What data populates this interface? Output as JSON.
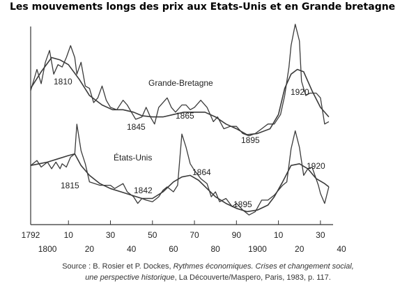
{
  "title": "Les mouvements longs des prix aux Etats-Unis et en Grande bretagne",
  "source": {
    "line1_prefix": "Source : B. Rosier et P. Dockes, ",
    "line1_italic": "Rythmes économiques. Crises et changement social,",
    "line2_italic": "une perspective historique",
    "line2_suffix": ", La Découverte/Maspero, Paris, 1983, p. 117."
  },
  "chart_data": {
    "type": "line",
    "title": "Les mouvements longs des prix aux Etats-Unis et en Grande bretagne",
    "xlabel": "",
    "ylabel": "",
    "xlim": [
      1792,
      1940
    ],
    "x_tick_labels_row1": [
      "1792",
      "10",
      "30",
      "50",
      "70",
      "90",
      "10",
      "30"
    ],
    "x_tick_values_row1": [
      1792,
      1810,
      1830,
      1850,
      1870,
      1890,
      1910,
      1930
    ],
    "x_tick_labels_row2": [
      "1800",
      "20",
      "40",
      "60",
      "80",
      "1900",
      "20",
      "40"
    ],
    "x_tick_values_row2": [
      1800,
      1820,
      1840,
      1860,
      1880,
      1900,
      1920,
      1940
    ],
    "y_axis_values_shown": false,
    "grid": false,
    "series": [
      {
        "name": "Grande-Bretagne",
        "style": "annual",
        "points": [
          [
            1792,
            77
          ],
          [
            1795,
            86
          ],
          [
            1797,
            80
          ],
          [
            1799,
            89
          ],
          [
            1801,
            94
          ],
          [
            1803,
            84
          ],
          [
            1805,
            88
          ],
          [
            1807,
            87
          ],
          [
            1809,
            91
          ],
          [
            1811,
            96
          ],
          [
            1813,
            91
          ],
          [
            1814,
            84
          ],
          [
            1816,
            89
          ],
          [
            1818,
            79
          ],
          [
            1820,
            78
          ],
          [
            1822,
            72
          ],
          [
            1824,
            74
          ],
          [
            1826,
            79
          ],
          [
            1828,
            73
          ],
          [
            1830,
            70
          ],
          [
            1833,
            69
          ],
          [
            1836,
            73
          ],
          [
            1838,
            71
          ],
          [
            1840,
            68
          ],
          [
            1842,
            65
          ],
          [
            1845,
            66
          ],
          [
            1847,
            70
          ],
          [
            1849,
            66
          ],
          [
            1851,
            63
          ],
          [
            1853,
            70
          ],
          [
            1855,
            72
          ],
          [
            1857,
            74
          ],
          [
            1859,
            70
          ],
          [
            1861,
            68
          ],
          [
            1864,
            71
          ],
          [
            1866,
            71
          ],
          [
            1868,
            69
          ],
          [
            1870,
            70
          ],
          [
            1873,
            73
          ],
          [
            1876,
            70
          ],
          [
            1879,
            64
          ],
          [
            1881,
            66
          ],
          [
            1884,
            61
          ],
          [
            1887,
            62
          ],
          [
            1890,
            62
          ],
          [
            1893,
            59
          ],
          [
            1896,
            58
          ],
          [
            1899,
            59
          ],
          [
            1902,
            61
          ],
          [
            1905,
            63
          ],
          [
            1908,
            63
          ],
          [
            1911,
            67
          ],
          [
            1913,
            75
          ],
          [
            1915,
            87
          ],
          [
            1916,
            96
          ],
          [
            1918,
            105
          ],
          [
            1920,
            98
          ],
          [
            1921,
            81
          ],
          [
            1923,
            75
          ],
          [
            1925,
            76
          ],
          [
            1928,
            76
          ],
          [
            1930,
            74
          ],
          [
            1932,
            63
          ],
          [
            1934,
            64
          ]
        ]
      },
      {
        "name": "Grande-Bretagne",
        "style": "trend",
        "points": [
          [
            1792,
            78
          ],
          [
            1797,
            85
          ],
          [
            1802,
            91
          ],
          [
            1806,
            90
          ],
          [
            1810,
            88
          ],
          [
            1815,
            82
          ],
          [
            1820,
            75
          ],
          [
            1826,
            71
          ],
          [
            1831,
            69
          ],
          [
            1836,
            69
          ],
          [
            1841,
            68
          ],
          [
            1845,
            66.5
          ],
          [
            1850,
            66
          ],
          [
            1855,
            66
          ],
          [
            1860,
            67
          ],
          [
            1865,
            68
          ],
          [
            1870,
            68
          ],
          [
            1875,
            68
          ],
          [
            1880,
            66
          ],
          [
            1885,
            63
          ],
          [
            1890,
            61
          ],
          [
            1895,
            58.5
          ],
          [
            1900,
            59
          ],
          [
            1906,
            61
          ],
          [
            1910,
            67
          ],
          [
            1913,
            78
          ],
          [
            1916,
            84
          ],
          [
            1919,
            86
          ],
          [
            1922,
            85
          ],
          [
            1926,
            77
          ],
          [
            1930,
            70
          ],
          [
            1934,
            66
          ]
        ]
      },
      {
        "name": "États-Unis",
        "style": "annual",
        "points": [
          [
            1792,
            35
          ],
          [
            1795,
            38
          ],
          [
            1797,
            34
          ],
          [
            1800,
            37
          ],
          [
            1802,
            33
          ],
          [
            1804,
            37
          ],
          [
            1806,
            33
          ],
          [
            1807,
            36
          ],
          [
            1809,
            34
          ],
          [
            1811,
            40
          ],
          [
            1813,
            42
          ],
          [
            1814,
            60
          ],
          [
            1816,
            44
          ],
          [
            1818,
            36
          ],
          [
            1820,
            25
          ],
          [
            1825,
            23
          ],
          [
            1830,
            23
          ],
          [
            1832,
            21
          ],
          [
            1836,
            24
          ],
          [
            1838,
            19
          ],
          [
            1841,
            16
          ],
          [
            1843,
            12
          ],
          [
            1845,
            15
          ],
          [
            1847,
            14
          ],
          [
            1850,
            13
          ],
          [
            1853,
            16
          ],
          [
            1855,
            20
          ],
          [
            1857,
            22
          ],
          [
            1860,
            19
          ],
          [
            1862,
            23
          ],
          [
            1864,
            54
          ],
          [
            1866,
            46
          ],
          [
            1868,
            36
          ],
          [
            1870,
            32
          ],
          [
            1873,
            27
          ],
          [
            1876,
            24
          ],
          [
            1878,
            16
          ],
          [
            1880,
            19
          ],
          [
            1882,
            13
          ],
          [
            1885,
            15
          ],
          [
            1888,
            10
          ],
          [
            1890,
            12
          ],
          [
            1893,
            8
          ],
          [
            1896,
            5
          ],
          [
            1899,
            7
          ],
          [
            1902,
            14
          ],
          [
            1905,
            14
          ],
          [
            1908,
            17
          ],
          [
            1910,
            20
          ],
          [
            1912,
            23
          ],
          [
            1914,
            25
          ],
          [
            1916,
            45
          ],
          [
            1918,
            56
          ],
          [
            1920,
            46
          ],
          [
            1922,
            29
          ],
          [
            1924,
            33
          ],
          [
            1926,
            34
          ],
          [
            1929,
            23
          ],
          [
            1930,
            18
          ],
          [
            1932,
            12
          ],
          [
            1934,
            22
          ]
        ]
      },
      {
        "name": "États-Unis",
        "style": "trend",
        "points": [
          [
            1792,
            35
          ],
          [
            1796,
            36
          ],
          [
            1800,
            37
          ],
          [
            1805,
            39
          ],
          [
            1810,
            41
          ],
          [
            1813,
            42
          ],
          [
            1816,
            35
          ],
          [
            1820,
            29
          ],
          [
            1825,
            24
          ],
          [
            1830,
            21
          ],
          [
            1835,
            19
          ],
          [
            1840,
            17
          ],
          [
            1845,
            15
          ],
          [
            1850,
            15
          ],
          [
            1855,
            19
          ],
          [
            1860,
            25
          ],
          [
            1864,
            28
          ],
          [
            1868,
            29
          ],
          [
            1872,
            26
          ],
          [
            1876,
            21
          ],
          [
            1880,
            16
          ],
          [
            1885,
            12
          ],
          [
            1890,
            9
          ],
          [
            1895,
            7
          ],
          [
            1900,
            8
          ],
          [
            1905,
            11
          ],
          [
            1908,
            16
          ],
          [
            1912,
            25
          ],
          [
            1916,
            35
          ],
          [
            1920,
            36
          ],
          [
            1924,
            33
          ],
          [
            1928,
            27
          ],
          [
            1932,
            24
          ],
          [
            1934,
            22
          ]
        ]
      }
    ],
    "annotations": [
      {
        "text": "Grande-Bretagne",
        "kind": "series-name"
      },
      {
        "text": "États-Unis",
        "kind": "series-name"
      },
      {
        "text": "1810",
        "x": 1810
      },
      {
        "text": "1845",
        "x": 1845
      },
      {
        "text": "1865",
        "x": 1865
      },
      {
        "text": "1895",
        "x": 1895
      },
      {
        "text": "1920",
        "x": 1920
      },
      {
        "text": "1815",
        "x": 1815
      },
      {
        "text": "1842",
        "x": 1842
      },
      {
        "text": "1864",
        "x": 1864
      },
      {
        "text": "1895",
        "x": 1895
      },
      {
        "text": "1920",
        "x": 1920
      }
    ]
  }
}
